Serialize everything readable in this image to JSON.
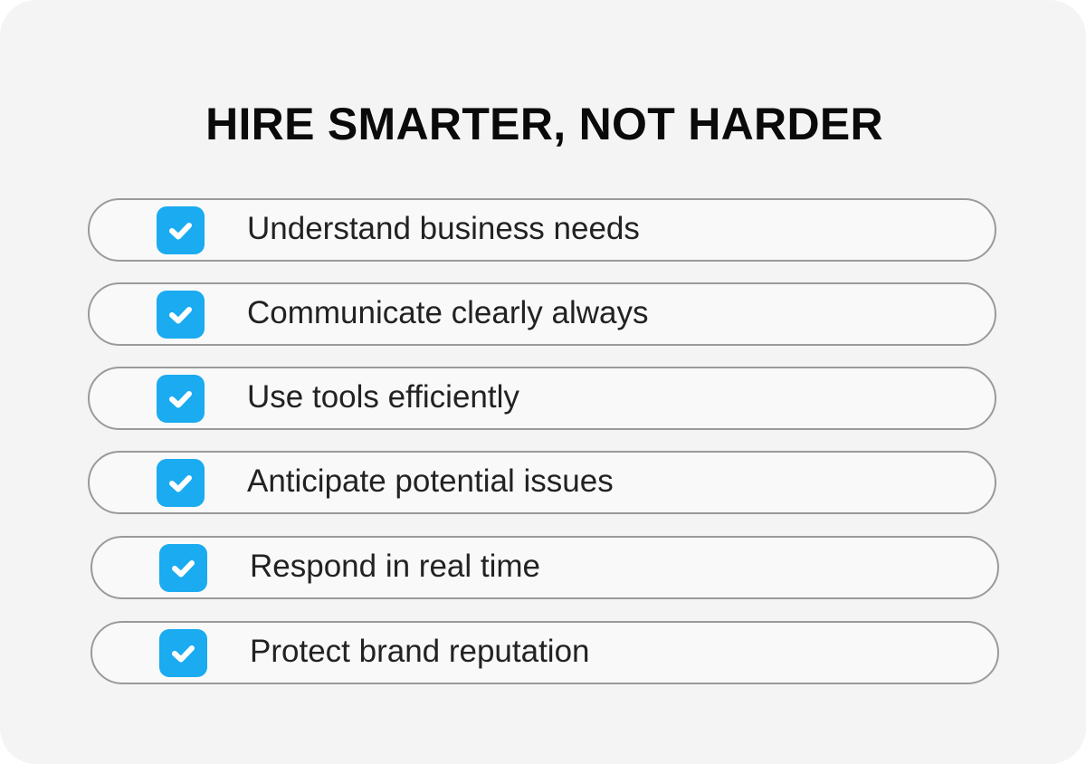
{
  "title": "HIRE SMARTER, NOT HARDER",
  "accent_color": "#1aabf0",
  "items": [
    {
      "label": "Understand business needs",
      "icon": "checkbox-checked-icon"
    },
    {
      "label": "Communicate clearly always",
      "icon": "checkbox-checked-icon"
    },
    {
      "label": "Use tools efficiently",
      "icon": "checkbox-checked-icon"
    },
    {
      "label": "Anticipate potential issues",
      "icon": "checkbox-checked-icon"
    },
    {
      "label": "Respond in real time",
      "icon": "checkbox-checked-icon"
    },
    {
      "label": "Protect brand reputation",
      "icon": "checkbox-checked-icon"
    }
  ]
}
